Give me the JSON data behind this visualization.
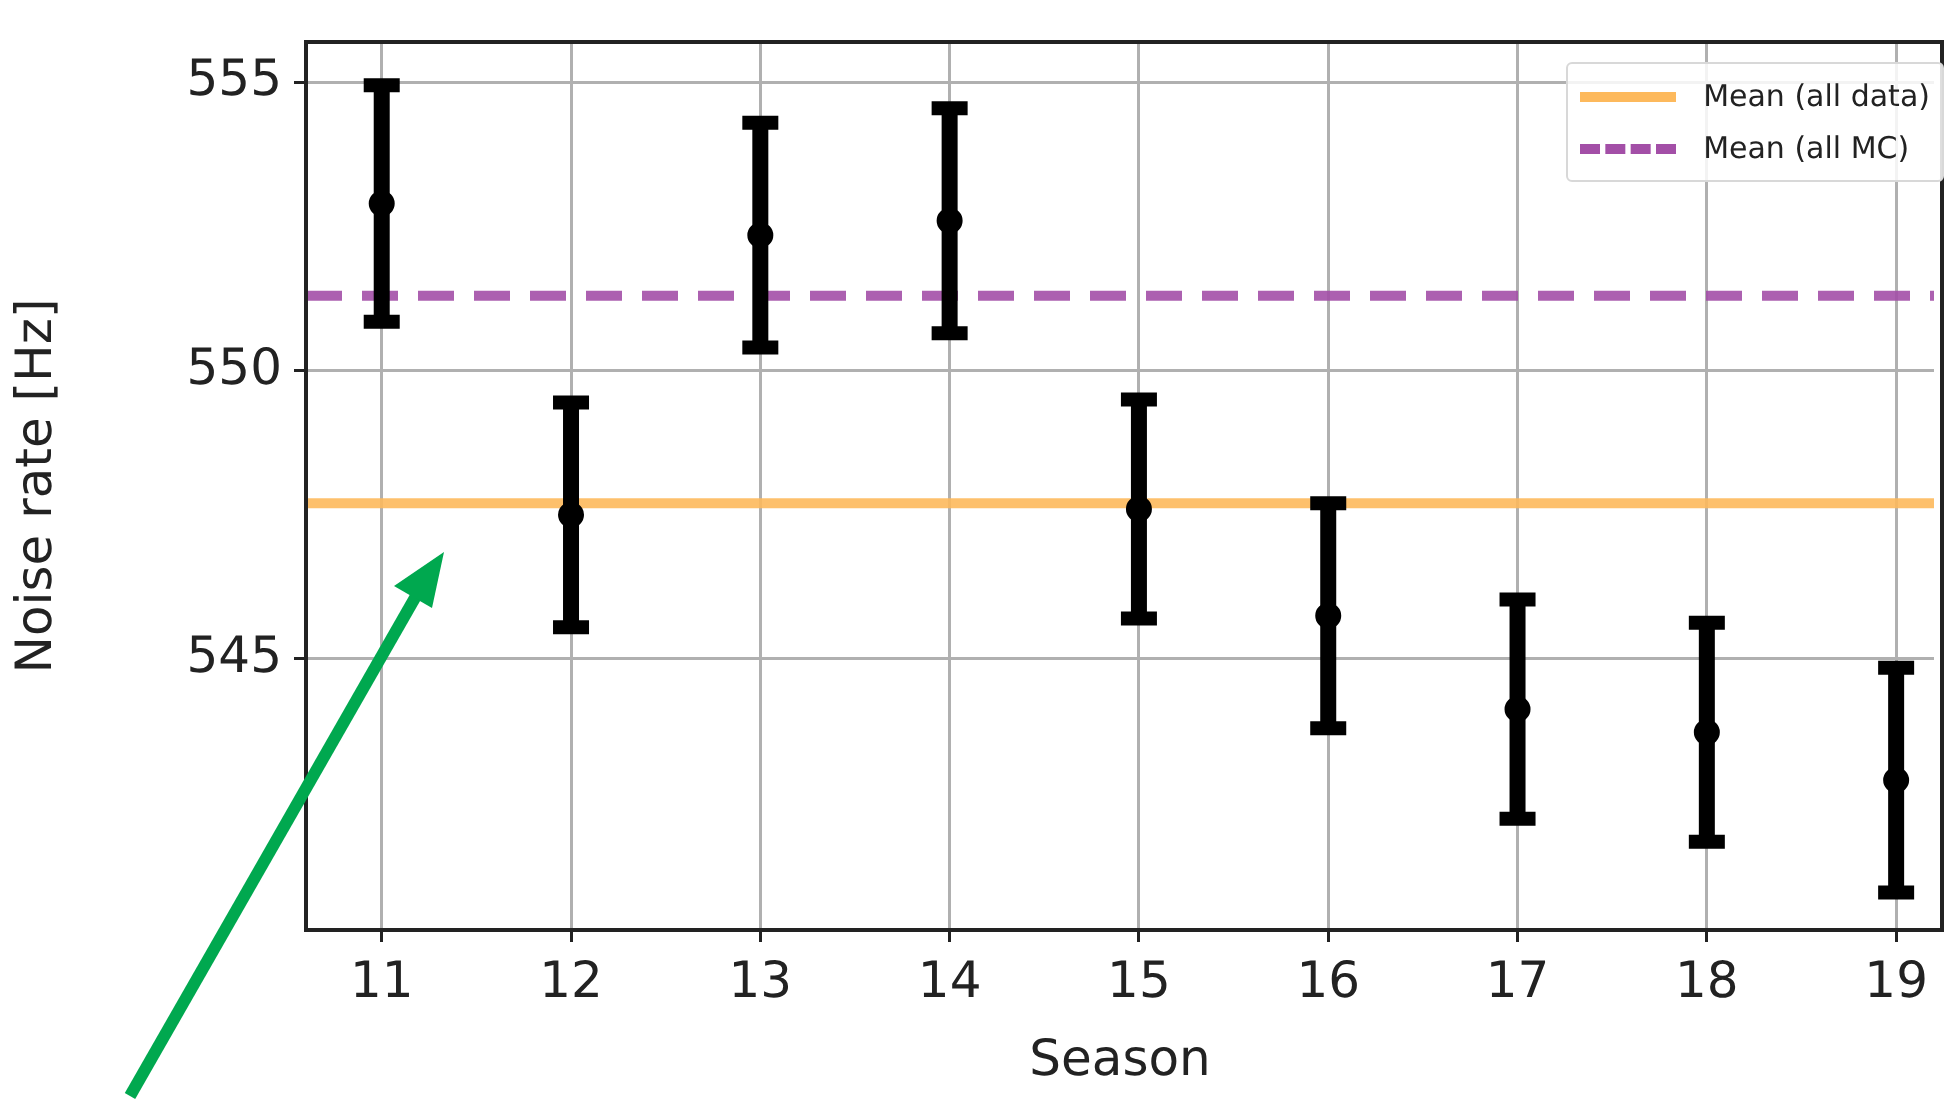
{
  "chart_data": {
    "type": "scatter",
    "xlabel": "Season",
    "ylabel": "Noise rate [Hz]",
    "x": [
      11,
      12,
      13,
      14,
      15,
      16,
      17,
      18,
      19
    ],
    "series": [
      {
        "color": "#000000",
        "values": [
          552.9,
          547.5,
          552.35,
          552.6,
          547.6,
          545.75,
          544.13,
          543.73,
          542.9
        ],
        "errors": [
          2.05,
          1.95,
          1.95,
          1.95,
          1.9,
          1.95,
          1.9,
          1.9,
          1.95
        ]
      }
    ],
    "xlim": [
      10.6,
      19.2
    ],
    "ylim": [
      540.3,
      555.7
    ],
    "xticks": [
      11,
      12,
      13,
      14,
      15,
      16,
      17,
      18,
      19
    ],
    "yticks": [
      545,
      550,
      555
    ],
    "ref_lines": [
      {
        "axis": "y",
        "value": 547.7,
        "label": "Mean (all data)",
        "color": "#fdb95c",
        "line_style": "solid"
      },
      {
        "axis": "y",
        "value": 551.3,
        "label": "Mean (all MC)",
        "color": "#a34fa7",
        "line_style": "dashed"
      }
    ],
    "grid": true,
    "legend": "top right",
    "marker": "circle"
  }
}
